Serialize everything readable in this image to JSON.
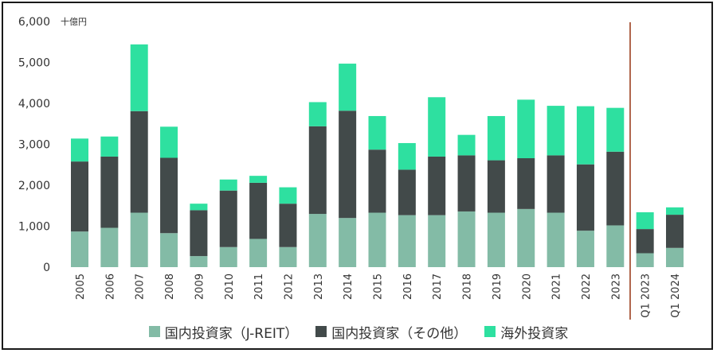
{
  "chart_data": {
    "type": "bar",
    "stacked": true,
    "unit_label": "十億円",
    "categories": [
      "2005",
      "2006",
      "2007",
      "2008",
      "2009",
      "2010",
      "2011",
      "2012",
      "2013",
      "2014",
      "2015",
      "2016",
      "2017",
      "2018",
      "2019",
      "2020",
      "2021",
      "2022",
      "2023",
      "Q1 2023",
      "Q1 2024"
    ],
    "series": [
      {
        "name": "国内投資家（J-REIT）",
        "color": "#83bba6",
        "values": [
          870,
          960,
          1330,
          830,
          270,
          490,
          690,
          490,
          1300,
          1200,
          1330,
          1270,
          1270,
          1360,
          1330,
          1420,
          1330,
          890,
          1020,
          340,
          470
        ]
      },
      {
        "name": "国内投資家（その他）",
        "color": "#424a4a",
        "values": [
          1710,
          1740,
          2480,
          1840,
          1120,
          1380,
          1370,
          1060,
          2140,
          2620,
          1540,
          1110,
          1430,
          1370,
          1280,
          1240,
          1400,
          1620,
          1800,
          590,
          810
        ]
      },
      {
        "name": "海外投資家",
        "color": "#2ee0a0",
        "values": [
          560,
          490,
          1630,
          760,
          160,
          270,
          170,
          400,
          590,
          1150,
          820,
          650,
          1450,
          500,
          1080,
          1430,
          1210,
          1420,
          1070,
          410,
          180
        ]
      }
    ],
    "y_ticks": [
      "0",
      "1,000",
      "2,000",
      "3,000",
      "4,000",
      "5,000",
      "6,000"
    ],
    "ylim": [
      0,
      6000
    ],
    "divider_after": "2023",
    "divider_color": "#b0654b",
    "legend_position": "bottom"
  }
}
